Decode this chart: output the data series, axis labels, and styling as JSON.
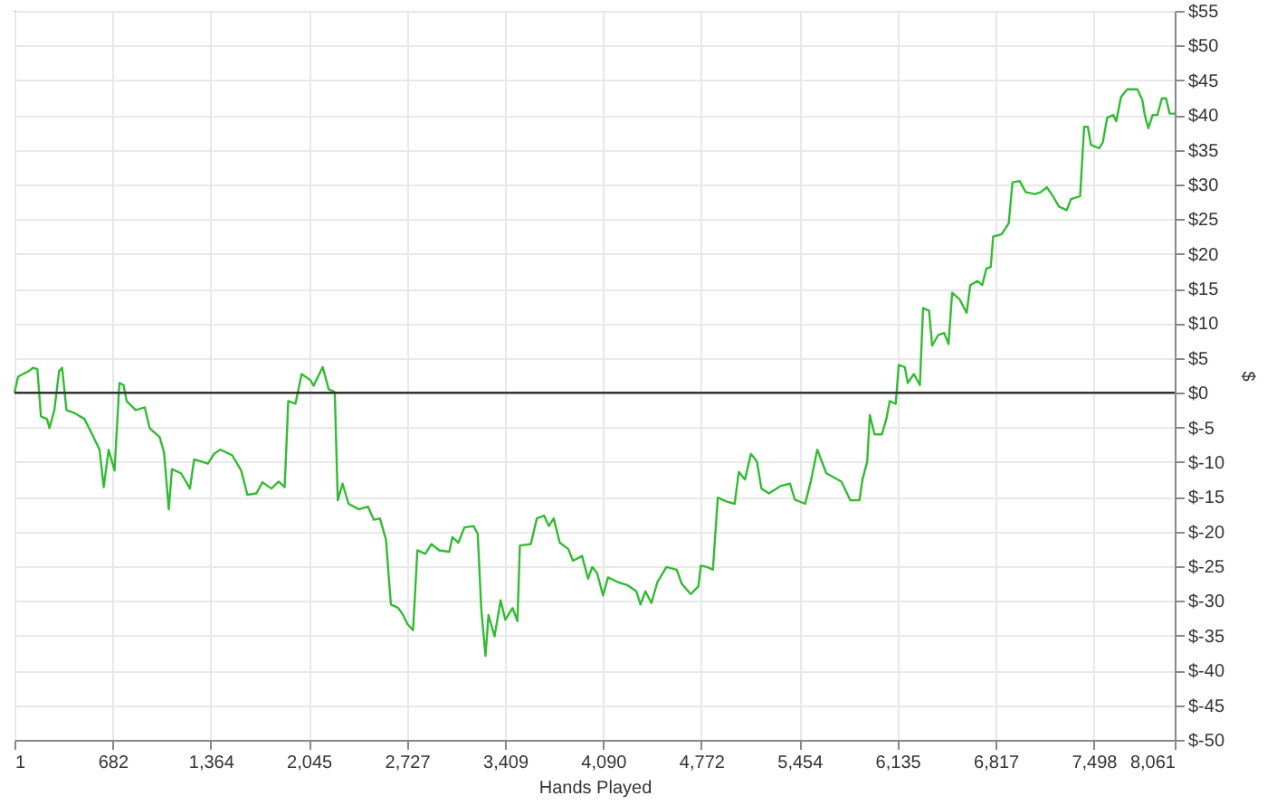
{
  "chart_data": {
    "type": "line",
    "xlabel": "Hands Played",
    "ylabel": "$",
    "x": [
      1,
      26,
      60,
      100,
      130,
      160,
      185,
      227,
      244,
      278,
      311,
      332,
      362,
      425,
      488,
      550,
      592,
      621,
      655,
      696,
      730,
      759,
      780,
      843,
      906,
      940,
      1010,
      1040,
      1073,
      1095,
      1158,
      1220,
      1249,
      1346,
      1388,
      1430,
      1513,
      1576,
      1619,
      1682,
      1723,
      1786,
      1836,
      1878,
      1903,
      1953,
      1996,
      2058,
      2079,
      2142,
      2184,
      2226,
      2247,
      2280,
      2322,
      2393,
      2456,
      2498,
      2540,
      2582,
      2616,
      2667,
      2700,
      2730,
      2770,
      2800,
      2855,
      2897,
      2952,
      3022,
      3043,
      3085,
      3127,
      3190,
      3219,
      3244,
      3273,
      3294,
      3336,
      3378,
      3411,
      3461,
      3495,
      3512,
      3588,
      3630,
      3680,
      3713,
      3747,
      3789,
      3848,
      3881,
      3944,
      3986,
      4015,
      4049,
      4090,
      4124,
      4195,
      4258,
      4321,
      4350,
      4384,
      4426,
      4467,
      4530,
      4602,
      4636,
      4698,
      4752,
      4769,
      4812,
      4853,
      4887,
      4950,
      5004,
      5033,
      5076,
      5117,
      5159,
      5190,
      5242,
      5326,
      5389,
      5422,
      5494,
      5536,
      5578,
      5641,
      5746,
      5808,
      5871,
      5892,
      5925,
      5943,
      5976,
      6027,
      6060,
      6081,
      6123,
      6144,
      6186,
      6207,
      6249,
      6291,
      6313,
      6355,
      6376,
      6418,
      6460,
      6490,
      6515,
      6565,
      6616,
      6641,
      6691,
      6724,
      6753,
      6783,
      6800,
      6858,
      6908,
      6934,
      6984,
      7026,
      7089,
      7131,
      7173,
      7215,
      7257,
      7311,
      7341,
      7404,
      7432,
      7458,
      7479,
      7537,
      7562,
      7592,
      7634,
      7655,
      7688,
      7731,
      7802,
      7836,
      7853,
      7878,
      7908,
      7941,
      7972,
      8001,
      8026,
      8061
    ],
    "series": [
      {
        "color": "#33bb33",
        "values": [
          0,
          2.3,
          2.7,
          3.1,
          3.6,
          3.4,
          -3.4,
          -3.8,
          -5.1,
          -2.5,
          3.1,
          3.6,
          -2.5,
          -3,
          -3.8,
          -6.4,
          -8.2,
          -13.6,
          -8.2,
          -11.2,
          1.4,
          1.1,
          -1.2,
          -2.5,
          -2.1,
          -5.1,
          -6.4,
          -8.6,
          -16.8,
          -11,
          -11.6,
          -13.8,
          -9.6,
          -10.2,
          -8.8,
          -8.2,
          -9,
          -11.2,
          -14.7,
          -14.5,
          -12.9,
          -13.8,
          -12.8,
          -13.6,
          -1.2,
          -1.6,
          2.7,
          1.8,
          1,
          3.7,
          0.5,
          0.1,
          -15.5,
          -13.1,
          -16,
          -16.8,
          -16.4,
          -18.3,
          -18.1,
          -21.2,
          -30.5,
          -31,
          -32,
          -33.3,
          -34.2,
          -22.7,
          -23.2,
          -21.8,
          -22.7,
          -22.9,
          -20.8,
          -21.6,
          -19.4,
          -19.2,
          -20.3,
          -31.2,
          -37.9,
          -32,
          -35.1,
          -29.9,
          -32.7,
          -31,
          -32.9,
          -22,
          -21.8,
          -18.1,
          -17.7,
          -19.2,
          -18.1,
          -21.6,
          -22.5,
          -24.2,
          -23.5,
          -26.8,
          -25.1,
          -26,
          -29.2,
          -26.6,
          -27.3,
          -27.7,
          -28.6,
          -30.5,
          -28.6,
          -30.3,
          -27.3,
          -25.1,
          -25.5,
          -27.5,
          -29,
          -27.9,
          -24.9,
          -25.1,
          -25.5,
          -15.1,
          -15.7,
          -16,
          -11.4,
          -12.5,
          -8.8,
          -9.9,
          -13.8,
          -14.5,
          -13.4,
          -13.1,
          -15.4,
          -16,
          -12.5,
          -8.2,
          -11.6,
          -12.8,
          -15.5,
          -15.5,
          -12.5,
          -9.9,
          -3.2,
          -6,
          -6,
          -3.6,
          -1.2,
          -1.6,
          4,
          3.7,
          1.4,
          2.7,
          1.1,
          12.2,
          11.8,
          6.8,
          8.3,
          8.6,
          7,
          14.4,
          13.5,
          11.5,
          15.5,
          16.1,
          15.5,
          17.9,
          18.1,
          22.5,
          22.8,
          24.4,
          30.3,
          30.5,
          28.9,
          28.6,
          28.9,
          29.6,
          28.3,
          26.8,
          26.3,
          27.9,
          28.3,
          38.3,
          38.3,
          35.7,
          35.2,
          36.1,
          39.6,
          40,
          39.1,
          42.6,
          43.7,
          43.7,
          42.2,
          40,
          38.1,
          40,
          40,
          42.4,
          42.4,
          40.2,
          40.2
        ]
      }
    ],
    "xlim": [
      1,
      8061
    ],
    "xticks": [
      1,
      682,
      {
        "value": 1364,
        "label": "1,364"
      },
      {
        "value": 2045,
        "label": "2,045"
      },
      {
        "value": 2727,
        "label": "2,727"
      },
      {
        "value": 3409,
        "label": "3,409"
      },
      {
        "value": 4090,
        "label": "4,090"
      },
      {
        "value": 4772,
        "label": "4,772"
      },
      {
        "value": 5454,
        "label": "5,454"
      },
      {
        "value": 6135,
        "label": "6,135"
      },
      {
        "value": 6817,
        "label": "6,817"
      },
      {
        "value": 7498,
        "label": "7,498"
      },
      {
        "value": 8061,
        "label": "8,061"
      }
    ],
    "ylim": [
      -50,
      55
    ],
    "yticks": [
      {
        "value": -50,
        "label": "$-50"
      },
      {
        "value": -45,
        "label": "$-45"
      },
      {
        "value": -40,
        "label": "$-40"
      },
      {
        "value": -35,
        "label": "$-35"
      },
      {
        "value": -30,
        "label": "$-30"
      },
      {
        "value": -25,
        "label": "$-25"
      },
      {
        "value": -20,
        "label": "$-20"
      },
      {
        "value": -15,
        "label": "$-15"
      },
      {
        "value": -10,
        "label": "$-10"
      },
      {
        "value": -5,
        "label": "$-5"
      },
      {
        "value": 0,
        "label": "$0"
      },
      {
        "value": 5,
        "label": "$5"
      },
      {
        "value": 10,
        "label": "$10"
      },
      {
        "value": 15,
        "label": "$15"
      },
      {
        "value": 20,
        "label": "$20"
      },
      {
        "value": 25,
        "label": "$25"
      },
      {
        "value": 30,
        "label": "$30"
      },
      {
        "value": 35,
        "label": "$35"
      },
      {
        "value": 40,
        "label": "$40"
      },
      {
        "value": 45,
        "label": "$45"
      },
      {
        "value": 50,
        "label": "$50"
      },
      {
        "value": 55,
        "label": "$55"
      }
    ],
    "ref_lines": [
      {
        "axis": "y",
        "value": 0,
        "color": "#333333"
      }
    ],
    "grid": true,
    "marker": "none",
    "line_style": "solid"
  }
}
